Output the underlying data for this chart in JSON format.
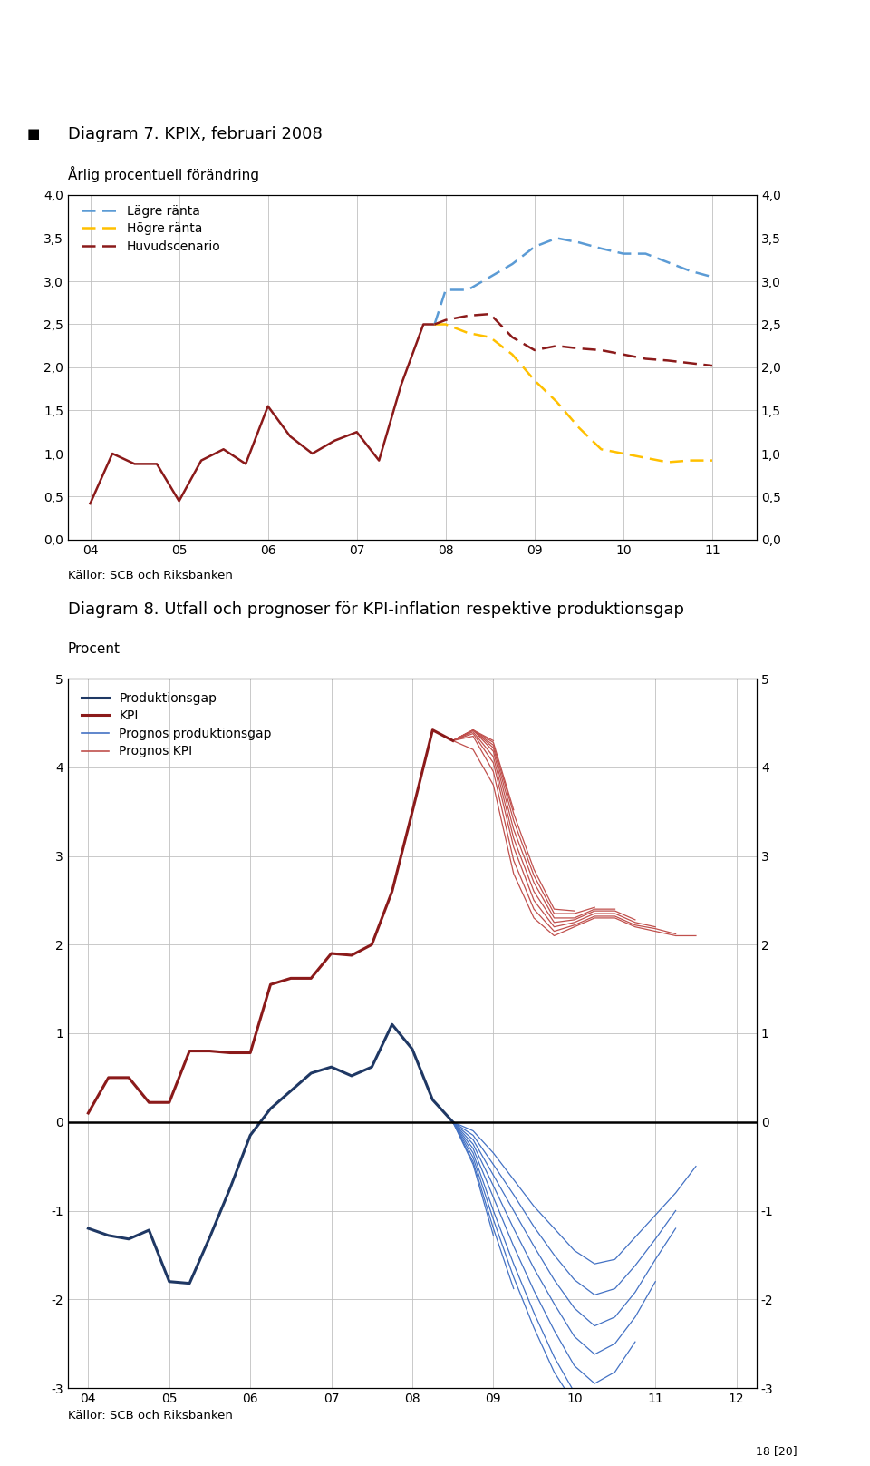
{
  "diagram7": {
    "title": "Diagram 7. KPIX, februari 2008",
    "subtitle": "Årlig procentuell förändring",
    "ylim": [
      0.0,
      4.0
    ],
    "yticks": [
      0.0,
      0.5,
      1.0,
      1.5,
      2.0,
      2.5,
      3.0,
      3.5,
      4.0
    ],
    "ytick_labels": [
      "0,0",
      "0,5",
      "1,0",
      "1,5",
      "2,0",
      "2,5",
      "3,0",
      "3,5",
      "4,0"
    ],
    "xticks": [
      4,
      5,
      6,
      7,
      8,
      9,
      10,
      11
    ],
    "xtick_labels": [
      "04",
      "05",
      "06",
      "07",
      "08",
      "09",
      "10",
      "11"
    ],
    "colors": {
      "lagre": "#5B9BD5",
      "hogre": "#FFC000",
      "huvud": "#8B1A1A"
    },
    "historical_x": [
      4.0,
      4.25,
      4.5,
      4.75,
      5.0,
      5.25,
      5.5,
      5.75,
      6.0,
      6.25,
      6.5,
      6.75,
      7.0,
      7.25,
      7.5,
      7.75,
      7.875
    ],
    "historical_y": [
      0.42,
      1.0,
      0.88,
      0.88,
      0.45,
      0.92,
      1.05,
      0.88,
      1.55,
      1.2,
      1.0,
      1.15,
      1.25,
      0.92,
      1.8,
      2.5,
      2.5
    ],
    "forecast_x": [
      7.875,
      8.0,
      8.25,
      8.5,
      8.75,
      9.0,
      9.25,
      9.5,
      9.75,
      10.0,
      10.25,
      10.5,
      10.75,
      11.0
    ],
    "lagre_y": [
      2.5,
      2.9,
      2.9,
      3.05,
      3.2,
      3.4,
      3.5,
      3.45,
      3.38,
      3.32,
      3.32,
      3.22,
      3.12,
      3.05
    ],
    "hogre_y": [
      2.5,
      2.5,
      2.4,
      2.35,
      2.15,
      1.85,
      1.6,
      1.3,
      1.05,
      1.0,
      0.95,
      0.9,
      0.92,
      0.92
    ],
    "huvud_y": [
      2.5,
      2.55,
      2.6,
      2.62,
      2.35,
      2.2,
      2.25,
      2.22,
      2.2,
      2.15,
      2.1,
      2.08,
      2.05,
      2.02
    ],
    "sources": "Källor: SCB och Riksbanken"
  },
  "diagram8": {
    "title": "Diagram 8. Utfall och prognoser för KPI-inflation respektive produktionsgap",
    "subtitle": "Procent",
    "ylim": [
      -3.0,
      5.0
    ],
    "yticks": [
      -3,
      -2,
      -1,
      0,
      1,
      2,
      3,
      4,
      5
    ],
    "ytick_labels": [
      "-3",
      "-2",
      "-1",
      "0",
      "1",
      "2",
      "3",
      "4",
      "5"
    ],
    "xticks": [
      4,
      5,
      6,
      7,
      8,
      9,
      10,
      11,
      12
    ],
    "xtick_labels": [
      "04",
      "05",
      "06",
      "07",
      "08",
      "09",
      "10",
      "11",
      "12"
    ],
    "colors": {
      "produktionsgap": "#1F3864",
      "kpi": "#8B1A1A",
      "prognos_prod": "#4472C4",
      "prognos_kpi": "#C0504D"
    },
    "prod_hist_x": [
      4.0,
      4.25,
      4.5,
      4.75,
      5.0,
      5.25,
      5.5,
      5.75,
      6.0,
      6.25,
      6.5,
      6.75,
      7.0,
      7.25,
      7.5,
      7.75,
      8.0,
      8.25,
      8.5
    ],
    "prod_hist_y": [
      -1.2,
      -1.28,
      -1.32,
      -1.22,
      -1.8,
      -1.82,
      -1.3,
      -0.75,
      -0.15,
      0.15,
      0.35,
      0.55,
      0.62,
      0.52,
      0.62,
      1.1,
      0.82,
      0.25,
      0.0
    ],
    "kpi_hist_x": [
      4.0,
      4.25,
      4.5,
      4.75,
      5.0,
      5.25,
      5.5,
      5.75,
      6.0,
      6.25,
      6.5,
      6.75,
      7.0,
      7.25,
      7.5,
      7.75,
      8.0,
      8.25,
      8.5
    ],
    "kpi_hist_y": [
      0.1,
      0.5,
      0.5,
      0.22,
      0.22,
      0.8,
      0.8,
      0.78,
      0.78,
      1.55,
      1.62,
      1.62,
      1.9,
      1.88,
      2.0,
      2.6,
      3.5,
      4.42,
      4.3
    ],
    "prognos_prod_x_all": [
      8.5,
      8.75,
      9.0,
      9.25,
      9.5,
      9.75,
      10.0,
      10.25,
      10.5,
      10.75,
      11.0,
      11.25,
      11.5
    ],
    "prognos_prod_curves": [
      [
        0.0,
        -0.1,
        -0.35,
        -0.65,
        -0.95,
        -1.2,
        -1.45,
        -1.6,
        -1.55,
        -1.3,
        -1.05,
        -0.8,
        -0.5
      ],
      [
        0.0,
        -0.15,
        -0.48,
        -0.82,
        -1.18,
        -1.5,
        -1.78,
        -1.95,
        -1.88,
        -1.62,
        -1.32,
        -1.0
      ],
      [
        0.0,
        -0.2,
        -0.6,
        -1.0,
        -1.4,
        -1.78,
        -2.1,
        -2.3,
        -2.2,
        -1.92,
        -1.55,
        -1.2
      ],
      [
        0.0,
        -0.25,
        -0.72,
        -1.2,
        -1.65,
        -2.05,
        -2.42,
        -2.62,
        -2.5,
        -2.2,
        -1.8
      ],
      [
        0.0,
        -0.3,
        -0.85,
        -1.4,
        -1.9,
        -2.35,
        -2.75,
        -2.95,
        -2.82,
        -2.48
      ],
      [
        0.0,
        -0.35,
        -1.0,
        -1.6,
        -2.15,
        -2.65,
        -3.05,
        -3.22,
        -3.05
      ],
      [
        0.0,
        -0.4,
        -1.1,
        -1.75,
        -2.32,
        -2.82,
        -3.18
      ],
      [
        0.0,
        -0.45,
        -1.2,
        -1.88
      ],
      [
        0.0,
        -0.48,
        -1.28
      ]
    ],
    "prognos_kpi_curves": [
      [
        4.3,
        4.2,
        3.8,
        2.8,
        2.3,
        2.1,
        2.2,
        2.3,
        2.3,
        2.2,
        2.15,
        2.1,
        2.1
      ],
      [
        4.3,
        4.35,
        3.95,
        2.95,
        2.4,
        2.15,
        2.22,
        2.32,
        2.32,
        2.22,
        2.18,
        2.12
      ],
      [
        4.3,
        4.38,
        4.05,
        3.1,
        2.5,
        2.2,
        2.25,
        2.35,
        2.35,
        2.25,
        2.2
      ],
      [
        4.3,
        4.4,
        4.12,
        3.2,
        2.6,
        2.25,
        2.28,
        2.38,
        2.38,
        2.28
      ],
      [
        4.3,
        4.42,
        4.18,
        3.3,
        2.7,
        2.3,
        2.3,
        2.4,
        2.4
      ],
      [
        4.3,
        4.42,
        4.22,
        3.4,
        2.78,
        2.35,
        2.35,
        2.42
      ],
      [
        4.3,
        4.42,
        4.25,
        3.48,
        2.85,
        2.4,
        2.38
      ],
      [
        4.3,
        4.42,
        4.28,
        3.52
      ],
      [
        4.3,
        4.42,
        4.3
      ]
    ],
    "sources": "Källor: SCB och Riksbanken"
  },
  "background_color": "#FFFFFF",
  "text_color": "#000000",
  "grid_color": "#C0C0C0",
  "font_size": 10,
  "tick_font_size": 10
}
